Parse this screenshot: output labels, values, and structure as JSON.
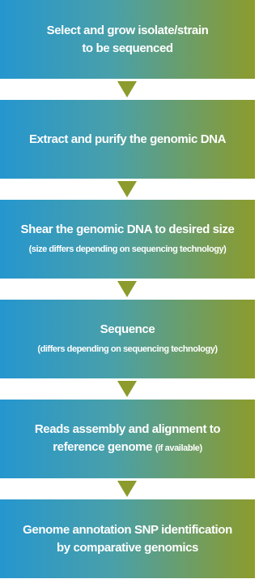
{
  "nodes": [
    {
      "lines": [
        "Select and grow isolate/strain",
        "to be sequenced"
      ]
    },
    {
      "lines": [
        "Extract and purify the genomic DNA"
      ]
    },
    {
      "lines": [
        "Shear the genomic DNA to desired size"
      ],
      "note": "(size differs depending on sequencing technology)"
    },
    {
      "lines": [
        "Sequence"
      ],
      "note": "(differs depending on sequencing technology)"
    },
    {
      "lines": [
        "Reads assembly and alignment to",
        "reference genome"
      ],
      "inline_note": "(if available)"
    },
    {
      "lines": [
        "Genome annotation SNP identification",
        "by comparative genomics"
      ]
    }
  ]
}
